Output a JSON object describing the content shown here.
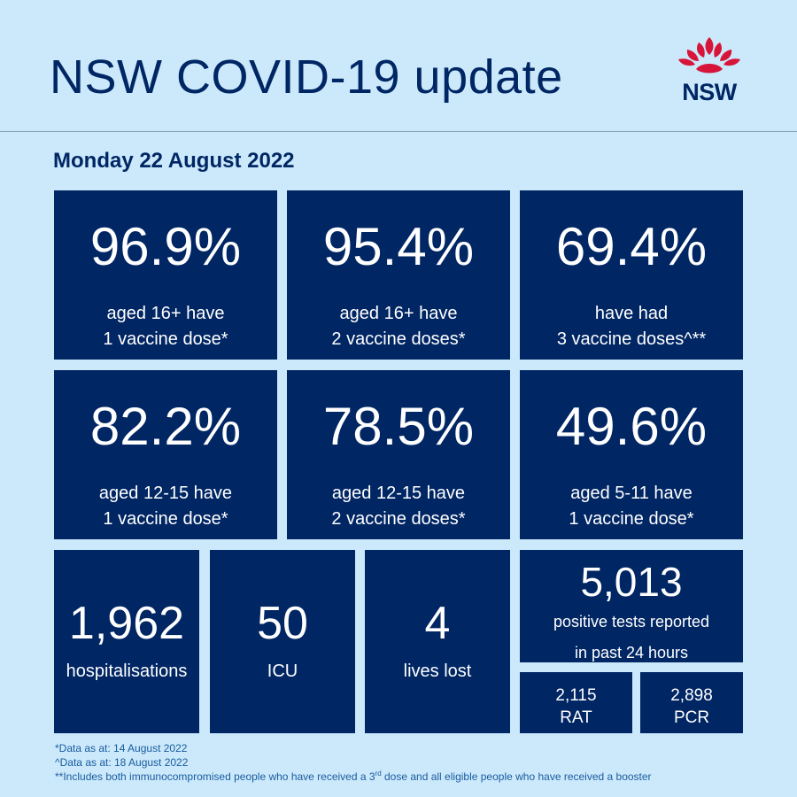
{
  "header": {
    "title": "NSW COVID-19 update",
    "logo_text": "NSW"
  },
  "date": "Monday 22 August 2022",
  "colors": {
    "background": "#cbe9fb",
    "tile": "#002664",
    "title_text": "#002664",
    "logo_red": "#d7153a",
    "footnote_text": "#1a5b9e"
  },
  "vaccine_stats": [
    {
      "value": "96.9%",
      "line1": "aged 16+ have",
      "line2": "1 vaccine dose*"
    },
    {
      "value": "95.4%",
      "line1": "aged 16+ have",
      "line2": "2 vaccine doses*"
    },
    {
      "value": "69.4%",
      "line1": "have had",
      "line2": "3 vaccine doses^**"
    },
    {
      "value": "82.2%",
      "line1": "aged 12-15 have",
      "line2": "1 vaccine dose*"
    },
    {
      "value": "78.5%",
      "line1": "aged 12-15 have",
      "line2": "2 vaccine doses*"
    },
    {
      "value": "49.6%",
      "line1": "aged 5-11 have",
      "line2": "1 vaccine dose*"
    }
  ],
  "case_stats": [
    {
      "value": "1,962",
      "label": "hospitalisations"
    },
    {
      "value": "50",
      "label": "ICU"
    },
    {
      "value": "4",
      "label": "lives lost"
    }
  ],
  "positive_tests": {
    "value": "5,013",
    "line1": "positive tests reported",
    "line2": "in past 24 hours"
  },
  "test_breakdown": [
    {
      "value": "2,115",
      "label": "RAT"
    },
    {
      "value": "2,898",
      "label": "PCR"
    }
  ],
  "footnotes": {
    "note1": "*Data as at: 14 August 2022",
    "note2": "^Data as at: 18 August 2022",
    "note3_before": "**Includes both immunocompromised people who have received a 3",
    "note3_sup": "rd",
    "note3_after": " dose and all eligible people who have received a booster"
  }
}
